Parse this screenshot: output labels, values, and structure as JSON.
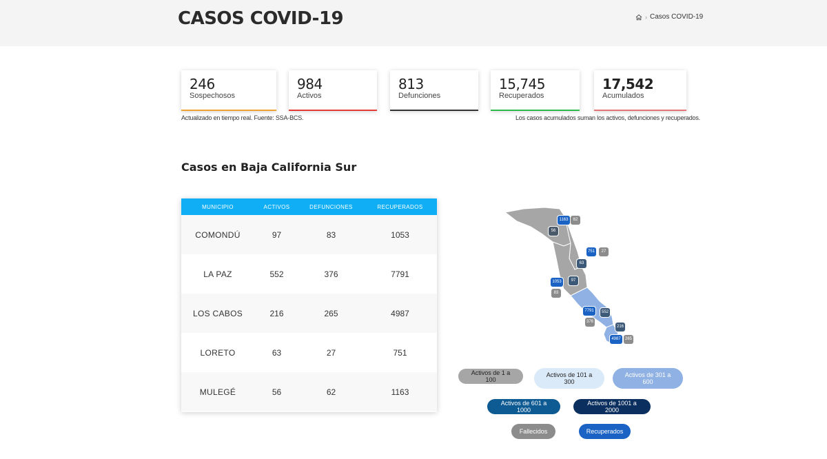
{
  "header": {
    "title": "CASOS COVID-19",
    "breadcrumb_current": "Casos COVID-19"
  },
  "stats": [
    {
      "value": "246",
      "label": "Sospechosos",
      "color": "#f0a030"
    },
    {
      "value": "984",
      "label": "Activos",
      "color": "#e53935"
    },
    {
      "value": "813",
      "label": "Defunciones",
      "color": "#333333"
    },
    {
      "value": "15,745",
      "label": "Recuperados",
      "color": "#2db84b"
    },
    {
      "value": "17,542",
      "label": "Acumulados",
      "color": "#e57373"
    }
  ],
  "notes": {
    "left": "Actualizado en tiempo real. Fuente: SSA-BCS.",
    "right": "Los casos acumulados suman los activos, defunciones y recuperados."
  },
  "section_title": "Casos en Baja California Sur",
  "table": {
    "headers": [
      "MUNICIPIO",
      "ACTIVOS",
      "DEFUNCIONES",
      "RECUPERADOS"
    ],
    "rows": [
      [
        "COMONDÚ",
        "97",
        "83",
        "1053"
      ],
      [
        "LA PAZ",
        "552",
        "376",
        "7791"
      ],
      [
        "LOS CABOS",
        "216",
        "265",
        "4987"
      ],
      [
        "LORETO",
        "63",
        "27",
        "751"
      ],
      [
        "MULEGÉ",
        "56",
        "62",
        "1163"
      ]
    ]
  },
  "map_badges": [
    {
      "text": "1163",
      "kind": "rec"
    },
    {
      "text": "62",
      "kind": "def"
    },
    {
      "text": "56",
      "kind": "act"
    },
    {
      "text": "751",
      "kind": "rec"
    },
    {
      "text": "27",
      "kind": "def"
    },
    {
      "text": "63",
      "kind": "act"
    },
    {
      "text": "1053",
      "kind": "rec"
    },
    {
      "text": "97",
      "kind": "act"
    },
    {
      "text": "83",
      "kind": "def"
    },
    {
      "text": "7791",
      "kind": "rec"
    },
    {
      "text": "552",
      "kind": "act"
    },
    {
      "text": "376",
      "kind": "def"
    },
    {
      "text": "216",
      "kind": "act"
    },
    {
      "text": "4987",
      "kind": "rec"
    },
    {
      "text": "265",
      "kind": "def"
    }
  ],
  "legend": [
    {
      "label": "Activos de 1 a 100",
      "bg": "#a6a6a6",
      "fg": "#222222"
    },
    {
      "label": "Activos de 101 a 300",
      "bg": "#dbeaf8",
      "fg": "#222222"
    },
    {
      "label": "Activos de 301 a 600",
      "bg": "#8fb1e3",
      "fg": "#ffffff"
    },
    {
      "label": "Activos de 601 a 1000",
      "bg": "#0e5a93",
      "fg": "#ffffff"
    },
    {
      "label": "Activos de 1001 a 2000",
      "bg": "#0b2f5e",
      "fg": "#ffffff"
    },
    {
      "label": "Fallecidos",
      "bg": "#8c8c8c",
      "fg": "#ffffff"
    },
    {
      "label": "Recuperados",
      "bg": "#1a63c5",
      "fg": "#ffffff"
    }
  ]
}
